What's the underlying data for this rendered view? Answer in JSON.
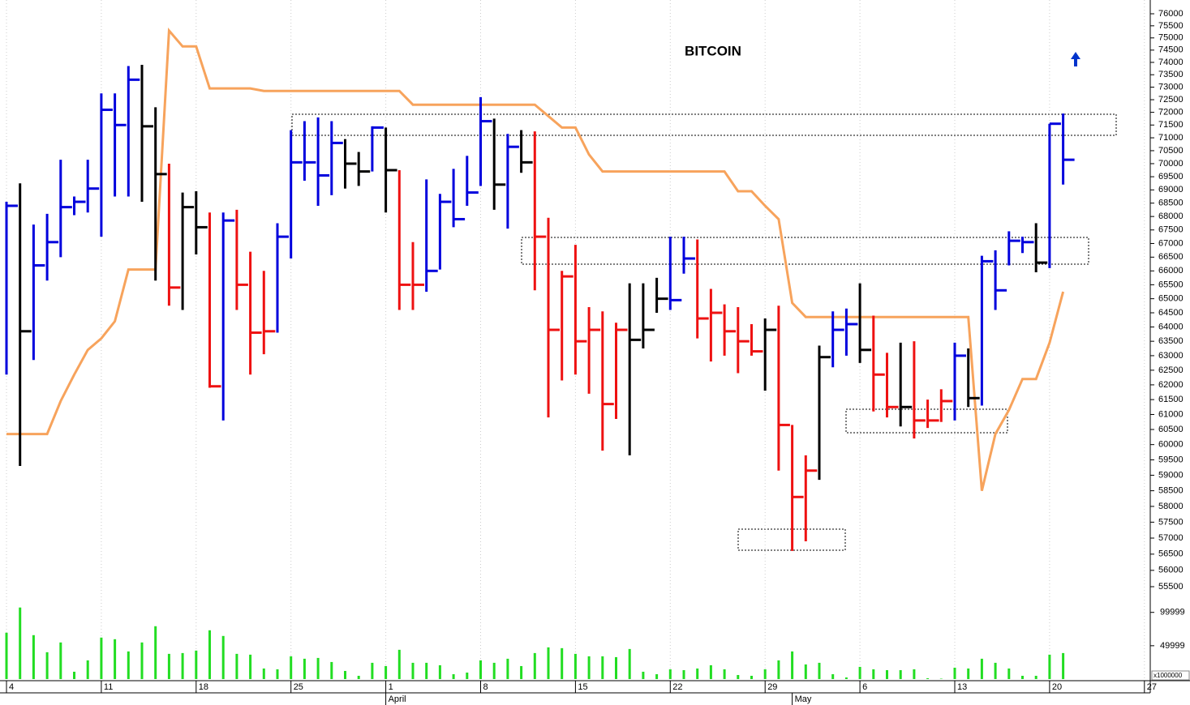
{
  "chart_data": {
    "type": "ohlc",
    "title": "BITCOIN",
    "log_scale": true,
    "categories": [
      "4",
      null,
      null,
      null,
      null,
      null,
      null,
      "11",
      null,
      null,
      null,
      null,
      null,
      null,
      "18",
      null,
      null,
      null,
      null,
      null,
      null,
      "25",
      null,
      null,
      null,
      null,
      null,
      null,
      "1",
      null,
      null,
      null,
      null,
      null,
      null,
      "8",
      null,
      null,
      null,
      null,
      null,
      null,
      "15",
      null,
      null,
      null,
      null,
      null,
      null,
      "22",
      null,
      null,
      null,
      null,
      null,
      null,
      "29",
      null,
      null,
      null,
      null,
      null,
      null,
      "6",
      null,
      null,
      null,
      null,
      null,
      null,
      "13",
      null,
      null,
      null,
      null,
      null,
      null,
      "20",
      null,
      null,
      null,
      null,
      null,
      null,
      "27"
    ],
    "months": [
      null,
      null,
      null,
      null,
      null,
      null,
      null,
      null,
      null,
      null,
      null,
      null,
      null,
      null,
      null,
      null,
      null,
      null,
      null,
      null,
      null,
      null,
      null,
      null,
      null,
      null,
      null,
      null,
      "April",
      null,
      null,
      null,
      null,
      null,
      null,
      null,
      null,
      null,
      null,
      null,
      null,
      null,
      null,
      null,
      null,
      null,
      null,
      null,
      null,
      null,
      null,
      null,
      null,
      null,
      null,
      null,
      null,
      null,
      "May",
      null,
      null,
      null,
      null,
      null,
      null,
      null,
      null,
      null,
      null,
      null,
      null,
      null,
      null,
      null,
      null,
      null,
      null,
      null,
      null,
      null,
      null,
      null,
      null,
      null,
      null
    ],
    "ylim": [
      55500,
      76000
    ],
    "yticks": [
      55500,
      56000,
      56500,
      57000,
      57500,
      58000,
      58500,
      59000,
      59500,
      60000,
      60500,
      61000,
      61500,
      62000,
      62500,
      63000,
      63500,
      64000,
      64500,
      65000,
      65500,
      66000,
      66500,
      67000,
      67500,
      68000,
      68500,
      69000,
      69500,
      70000,
      70500,
      71000,
      71500,
      72000,
      72500,
      73000,
      73500,
      74000,
      74500,
      75000,
      75500,
      76000
    ],
    "high": [
      68550,
      69250,
      67700,
      68100,
      70150,
      68750,
      70150,
      72750,
      72750,
      73850,
      73900,
      72200,
      70000,
      68900,
      68950,
      68150,
      68150,
      68250,
      66700,
      66000,
      67750,
      71300,
      71650,
      71800,
      71650,
      70950,
      70450,
      71450,
      71400,
      69750,
      67050,
      69400,
      68850,
      69800,
      70300,
      72600,
      71750,
      71150,
      71300,
      71250,
      67950,
      66000,
      66950,
      64700,
      64550,
      64150,
      65550,
      65550,
      65750,
      67250,
      67250,
      67150,
      65350,
      64800,
      64700,
      64100,
      64300,
      64750,
      60650,
      59650,
      63350,
      64550,
      64650,
      65550,
      64400,
      63100,
      63450,
      63500,
      61500,
      61850,
      63450,
      63250,
      66550,
      66750,
      67450,
      67250,
      67750,
      71550,
      71950,
      null,
      null,
      null,
      null,
      null,
      null
    ],
    "low": [
      62350,
      59300,
      62850,
      65650,
      66500,
      68050,
      68150,
      67250,
      68750,
      68750,
      68550,
      65650,
      64750,
      64600,
      66600,
      61900,
      60800,
      64600,
      62350,
      63050,
      63800,
      66450,
      69350,
      68400,
      68800,
      69050,
      69150,
      69700,
      68150,
      64600,
      64600,
      65250,
      66050,
      67600,
      68400,
      69150,
      68250,
      67550,
      69650,
      65300,
      60900,
      62150,
      62350,
      61700,
      59800,
      60850,
      59650,
      63250,
      64500,
      64600,
      65900,
      63600,
      62800,
      63000,
      62400,
      63000,
      61800,
      59150,
      56600,
      56900,
      58850,
      62600,
      63000,
      62750,
      61100,
      60900,
      60600,
      60200,
      60550,
      60750,
      60800,
      61250,
      61300,
      64600,
      66200,
      66650,
      65950,
      66100,
      69200,
      null,
      null,
      null,
      null,
      null,
      null
    ],
    "close": [
      68400,
      63850,
      66200,
      67050,
      68350,
      68550,
      69050,
      72100,
      71500,
      73300,
      71450,
      69600,
      65400,
      68350,
      67600,
      61950,
      67850,
      65500,
      63800,
      63850,
      67250,
      70050,
      70050,
      69550,
      70800,
      70000,
      69700,
      71400,
      69750,
      65500,
      65500,
      66000,
      68550,
      67900,
      68900,
      71650,
      69200,
      70650,
      70050,
      67250,
      63900,
      65800,
      63500,
      63900,
      61350,
      63900,
      63550,
      63900,
      65000,
      64950,
      66450,
      64300,
      64500,
      63850,
      63500,
      63150,
      63900,
      60650,
      58300,
      59150,
      62950,
      63900,
      64100,
      63200,
      62350,
      61250,
      61250,
      60800,
      60800,
      61450,
      63000,
      61550,
      66350,
      65300,
      67100,
      67050,
      66300,
      71550,
      70150,
      null,
      null,
      null,
      null,
      null,
      null
    ],
    "colors": [
      "#0000dd",
      "#000000",
      "#0000dd",
      "#0000dd",
      "#0000dd",
      "#0000dd",
      "#0000dd",
      "#0000dd",
      "#0000dd",
      "#0000dd",
      "#000000",
      "#000000",
      "#ee1111",
      "#000000",
      "#000000",
      "#ee1111",
      "#0000dd",
      "#ee1111",
      "#ee1111",
      "#ee1111",
      "#0000dd",
      "#0000dd",
      "#0000dd",
      "#0000dd",
      "#0000dd",
      "#000000",
      "#000000",
      "#0000dd",
      "#000000",
      "#ee1111",
      "#ee1111",
      "#0000dd",
      "#0000dd",
      "#0000dd",
      "#0000dd",
      "#0000dd",
      "#000000",
      "#0000dd",
      "#000000",
      "#ee1111",
      "#ee1111",
      "#ee1111",
      "#ee1111",
      "#ee1111",
      "#ee1111",
      "#ee1111",
      "#000000",
      "#000000",
      "#000000",
      "#0000dd",
      "#0000dd",
      "#ee1111",
      "#ee1111",
      "#ee1111",
      "#ee1111",
      "#ee1111",
      "#000000",
      "#ee1111",
      "#ee1111",
      "#ee1111",
      "#000000",
      "#0000dd",
      "#0000dd",
      "#000000",
      "#ee1111",
      "#ee1111",
      "#000000",
      "#ee1111",
      "#ee1111",
      "#ee1111",
      "#0000dd",
      "#000000",
      "#0000dd",
      "#0000dd",
      "#0000dd",
      "#0000dd",
      "#000000",
      "#0000dd",
      "#0000dd",
      null,
      null,
      null,
      null,
      null,
      null
    ],
    "overlay": {
      "color": "#f7a35c",
      "values": [
        60350,
        60350,
        60350,
        60350,
        61450,
        62350,
        63200,
        63600,
        64200,
        66050,
        66050,
        66050,
        75300,
        74650,
        74650,
        72950,
        72950,
        72950,
        72950,
        72850,
        72850,
        72850,
        72850,
        72850,
        72850,
        72850,
        72850,
        72850,
        72850,
        72850,
        72300,
        72300,
        72300,
        72300,
        72300,
        72300,
        72300,
        72300,
        72300,
        72300,
        71850,
        71400,
        71400,
        70350,
        69700,
        69700,
        69700,
        69700,
        69700,
        69700,
        69700,
        69700,
        69700,
        69700,
        68950,
        68950,
        68400,
        67900,
        64850,
        64350,
        64350,
        64350,
        64350,
        64350,
        64350,
        64350,
        64350,
        64350,
        64350,
        64350,
        64350,
        64350,
        58500,
        60350,
        61150,
        62200,
        62200,
        63450,
        65250,
        null,
        null,
        null,
        null,
        null,
        null
      ]
    },
    "volume": {
      "color": "#22dd22",
      "ylim": [
        0,
        113000
      ],
      "yticks": [
        49999,
        99999
      ],
      "unit_label": "x1000000",
      "values": [
        69500,
        107300,
        65850,
        40250,
        54900,
        11000,
        28050,
        62200,
        59750,
        41450,
        54900,
        79250,
        37800,
        39000,
        42700,
        73150,
        64650,
        37800,
        36600,
        15850,
        14650,
        34150,
        30500,
        31700,
        25600,
        12200,
        4900,
        24400,
        19500,
        43900,
        24400,
        24400,
        20750,
        7300,
        9750,
        28050,
        24400,
        30500,
        19500,
        39000,
        47550,
        46350,
        37800,
        34150,
        34150,
        32900,
        45100,
        11000,
        7300,
        14650,
        13400,
        15850,
        20750,
        14650,
        6100,
        4900,
        14650,
        28050,
        41450,
        21950,
        24400,
        7300,
        2450,
        18300,
        14650,
        13400,
        13400,
        14650,
        1200,
        600,
        17050,
        15850,
        30500,
        24400,
        15850,
        4900,
        4900,
        36600,
        39000,
        null,
        null,
        null,
        null,
        null,
        null
      ]
    }
  }
}
